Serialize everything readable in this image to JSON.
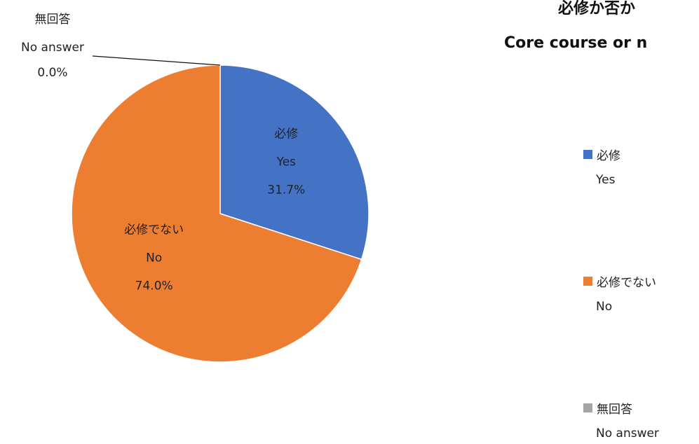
{
  "chart_data": {
    "type": "pie",
    "title_ja": "必修か否か",
    "title_en": "Core course or n",
    "series": [
      {
        "label_ja": "必修",
        "label_en": "Yes",
        "value": 31.7,
        "value_label": "31.7%",
        "color": "#4472C4"
      },
      {
        "label_ja": "必修でない",
        "label_en": "No",
        "value": 74.0,
        "value_label": "74.0%",
        "color": "#ED7D31"
      },
      {
        "label_ja": "無回答",
        "label_en": "No answer",
        "value": 0.0,
        "value_label": "0.0%",
        "color": "#A5A5A5"
      }
    ],
    "legend_position": "right"
  }
}
